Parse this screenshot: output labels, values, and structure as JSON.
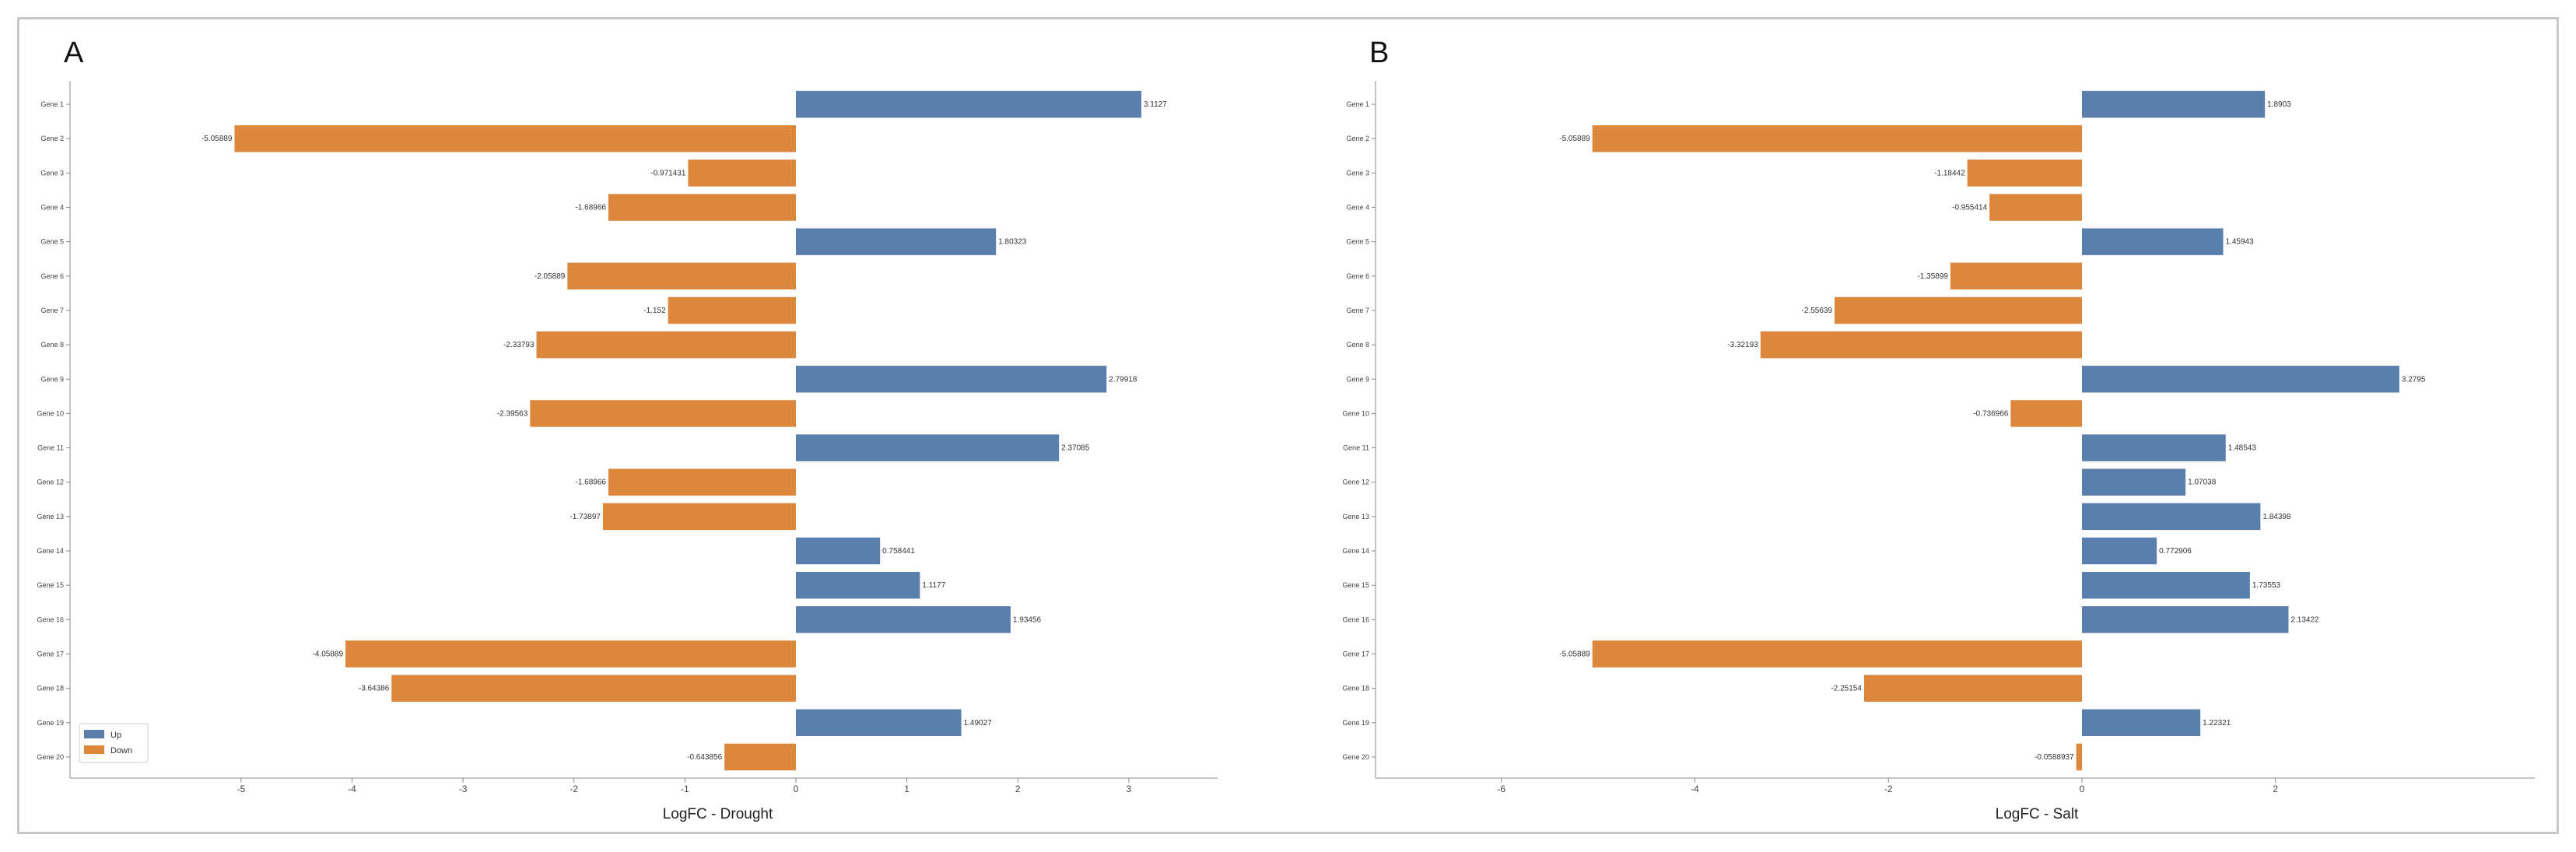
{
  "chart_data": [
    {
      "type": "bar",
      "orientation": "horizontal",
      "panel_label": "A",
      "xlabel": "LogFC - Drought",
      "xticks": [
        -5,
        -4,
        -3,
        -2,
        -1,
        0,
        1,
        2,
        3
      ],
      "xlim": [
        -5.6,
        3.8
      ],
      "categories": [
        "Gene 1",
        "Gene 2",
        "Gene 3",
        "Gene 4",
        "Gene 5",
        "Gene 6",
        "Gene 7",
        "Gene 8",
        "Gene 9",
        "Gene 10",
        "Gene 11",
        "Gene 12",
        "Gene 13",
        "Gene 14",
        "Gene 15",
        "Gene 16",
        "Gene 17",
        "Gene 18",
        "Gene 19",
        "Gene 20"
      ],
      "values": [
        3.1127,
        -5.05889,
        -0.971431,
        -1.68966,
        1.80323,
        -2.05889,
        -1.152,
        -2.33793,
        2.79918,
        -2.39563,
        2.37085,
        -1.68966,
        -1.73897,
        0.758441,
        1.1177,
        1.93456,
        -4.05889,
        -3.64386,
        1.49027,
        -0.643856
      ],
      "value_labels": [
        "3.1127",
        "-5.05889",
        "-0.971431",
        "-1.68966",
        "1.80323",
        "-2.05889",
        "-1.152",
        "-2.33793",
        "2.79918",
        "-2.39563",
        "2.37085",
        "-1.68966",
        "-1.73897",
        "0.758441",
        "1.1177",
        "1.93456",
        "-4.05889",
        "-3.64386",
        "1.49027",
        "-0.643856"
      ],
      "legend": {
        "placement": "lower-left",
        "items": [
          {
            "label": "Up",
            "color": "#5b7fad"
          },
          {
            "label": "Down",
            "color": "#dc873c"
          }
        ]
      },
      "colors": {
        "up": "#5b7fad",
        "down": "#dc873c"
      }
    },
    {
      "type": "bar",
      "orientation": "horizontal",
      "panel_label": "B",
      "xlabel": "LogFC - Salt",
      "xticks": [
        -6,
        -4,
        -2,
        0,
        2
      ],
      "xlim": [
        -7.3,
        3.7
      ],
      "categories": [
        "Gene 1",
        "Gene 2",
        "Gene 3",
        "Gene 4",
        "Gene 5",
        "Gene 6",
        "Gene 7",
        "Gene 8",
        "Gene 9",
        "Gene 10",
        "Gene 11",
        "Gene 12",
        "Gene 13",
        "Gene 14",
        "Gene 15",
        "Gene 16",
        "Gene 17",
        "Gene 18",
        "Gene 19",
        "Gene 20"
      ],
      "values": [
        1.8903,
        -5.05889,
        -1.18442,
        -0.955414,
        1.45943,
        -1.35899,
        -2.55639,
        -3.32193,
        3.2795,
        -0.736966,
        1.48543,
        1.07038,
        1.84398,
        0.772906,
        1.73553,
        2.13422,
        -5.05889,
        -2.25154,
        1.22321,
        -0.0588937
      ],
      "value_labels": [
        "1.8903",
        "-5.05889",
        "-1.18442",
        "-0.955414",
        "1.45943",
        "-1.35899",
        "-2.55639",
        "-3.32193",
        "3.2795",
        "-0.736966",
        "1.48543",
        "1.07038",
        "1.84398",
        "0.772906",
        "1.73553",
        "2.13422",
        "-5.05889",
        "-2.25154",
        "1.22321",
        "-0.0588937"
      ],
      "colors": {
        "up": "#5b7fad",
        "down": "#dc873c"
      }
    }
  ]
}
